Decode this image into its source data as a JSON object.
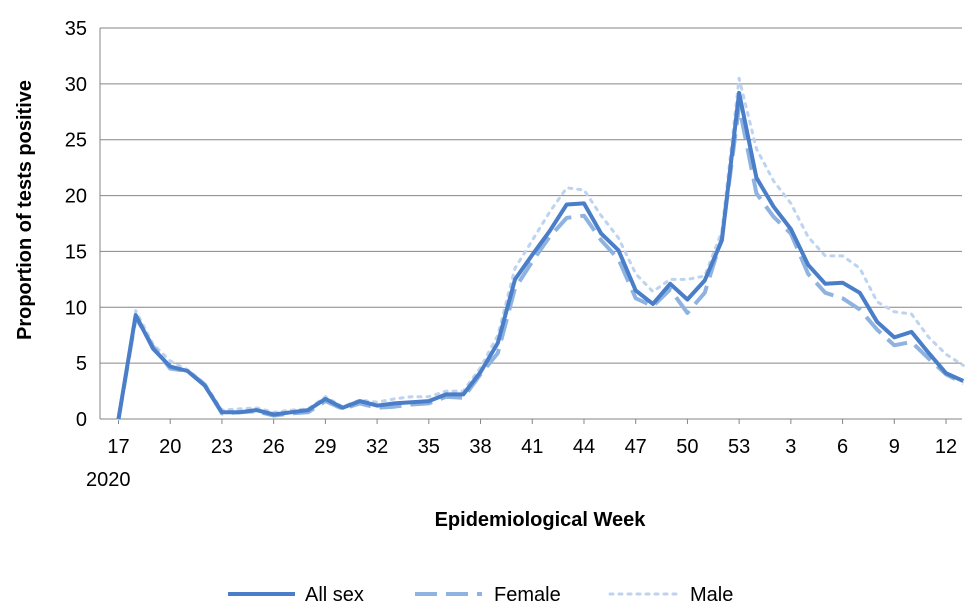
{
  "chart_data": {
    "type": "line",
    "xlabel": "Epidemiological Week",
    "ylabel": "Proportion of tests positive",
    "ylim": [
      0,
      35
    ],
    "yticks": [
      0,
      5,
      10,
      15,
      20,
      25,
      30,
      35
    ],
    "grid": true,
    "legend_position": "bottom",
    "x_tick_labels": [
      "17",
      "20",
      "23",
      "26",
      "29",
      "32",
      "35",
      "38",
      "41",
      "44",
      "47",
      "50",
      "53",
      "3",
      "6",
      "9",
      "12"
    ],
    "x_year_label": "2020",
    "categories": [
      "17",
      "18",
      "19",
      "20",
      "21",
      "22",
      "23",
      "24",
      "25",
      "26",
      "27",
      "28",
      "29",
      "30",
      "31",
      "32",
      "33",
      "34",
      "35",
      "36",
      "37",
      "38",
      "39",
      "40",
      "41",
      "42",
      "43",
      "44",
      "45",
      "46",
      "47",
      "48",
      "49",
      "50",
      "51",
      "52",
      "53",
      "1",
      "2",
      "3",
      "4",
      "5",
      "6",
      "7",
      "8",
      "9",
      "10",
      "11",
      "12",
      "13"
    ],
    "series": [
      {
        "name": "All sex",
        "color": "#4a7ec8",
        "dash": "solid",
        "values": [
          0,
          9.3,
          6.3,
          4.7,
          4.3,
          3.0,
          0.6,
          0.6,
          0.8,
          0.4,
          0.6,
          0.8,
          1.8,
          1.0,
          1.6,
          1.2,
          1.4,
          1.5,
          1.6,
          2.2,
          2.2,
          4.2,
          6.8,
          12.5,
          14.7,
          16.8,
          19.2,
          19.3,
          16.6,
          15.1,
          11.5,
          10.3,
          12.1,
          10.7,
          12.4,
          16.0,
          29.2,
          21.6,
          19.0,
          17.0,
          13.8,
          12.1,
          12.2,
          11.3,
          8.7,
          7.3,
          7.8,
          5.9,
          4.1,
          3.4
        ]
      },
      {
        "name": "Female",
        "color": "#8fb3e0",
        "dash": "long-dash",
        "values": [
          0,
          9.1,
          6.5,
          4.5,
          4.3,
          3.1,
          0.5,
          0.6,
          0.7,
          0.3,
          0.5,
          0.6,
          1.6,
          0.9,
          1.4,
          1.0,
          1.1,
          1.3,
          1.4,
          2.0,
          1.9,
          4.0,
          5.9,
          11.7,
          14.1,
          16.3,
          18.0,
          18.2,
          16.0,
          14.3,
          10.8,
          10.1,
          11.6,
          9.5,
          11.3,
          16.2,
          28.0,
          20.2,
          18.1,
          16.6,
          13.0,
          11.3,
          10.8,
          9.8,
          8.0,
          6.6,
          6.9,
          5.4,
          4.0,
          3.2
        ]
      },
      {
        "name": "Male",
        "color": "#bdd3ef",
        "dash": "dotted",
        "values": [
          0,
          9.7,
          6.7,
          5.2,
          4.4,
          3.2,
          0.8,
          0.9,
          1.0,
          0.6,
          0.8,
          0.9,
          2.0,
          1.1,
          1.7,
          1.5,
          1.8,
          2.0,
          2.0,
          2.5,
          2.5,
          4.6,
          7.5,
          13.5,
          16.0,
          18.5,
          20.7,
          20.5,
          18.2,
          16.2,
          13.0,
          11.4,
          12.5,
          12.5,
          12.8,
          16.8,
          30.5,
          24.2,
          21.3,
          19.3,
          16.3,
          14.6,
          14.6,
          13.5,
          10.5,
          9.6,
          9.4,
          7.3,
          5.8,
          4.8
        ]
      }
    ]
  }
}
